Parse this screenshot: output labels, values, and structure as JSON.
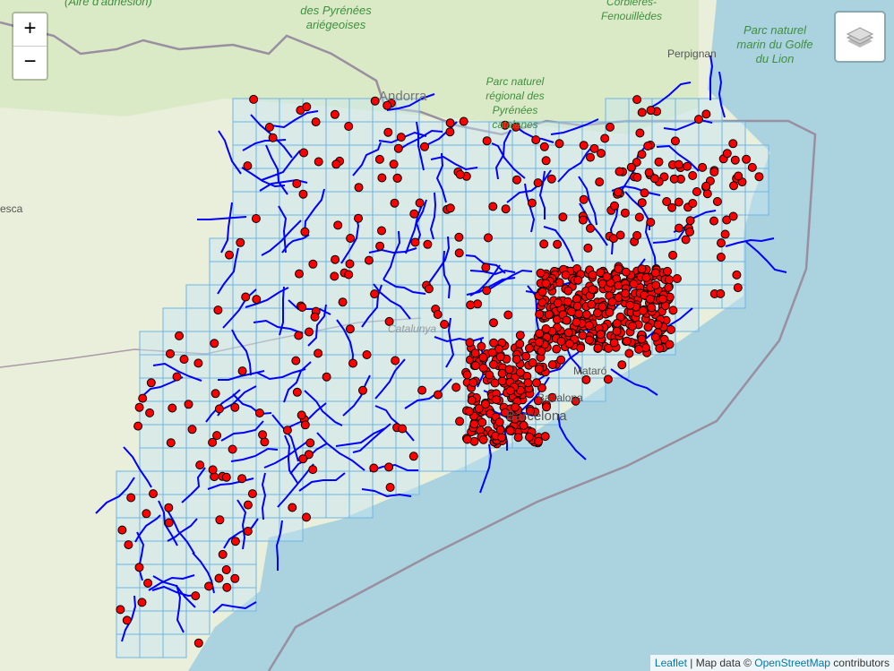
{
  "map": {
    "labels": {
      "aire": "(Aire d'adhésion)",
      "pyrenees_ariegeoises": "des Pyrénées ariégeoises",
      "corbieres": "Corbières-Fenouillèdes",
      "parc_marin": "Parc naturel marin du Golfe du Lion",
      "parc_pyrenees_catalanes": "Parc naturel régional des Pyrénées catalanes",
      "andorra": "Andorra",
      "perpignan": "Perpignan",
      "huesca": "esca",
      "catalunya": "Catalunya",
      "mataro": "Mataró",
      "badalona": "Badalona",
      "barcelona": "Barcelona"
    },
    "colors": {
      "land": "#eef0e4",
      "sea": "#aad3df",
      "grid": "#6fb4e3",
      "river": "#0000ff",
      "marker": "#ff0000",
      "marker_stroke": "#000000"
    }
  },
  "controls": {
    "zoom_in": "+",
    "zoom_out": "−",
    "layers_icon": "layers-icon"
  },
  "attribution": {
    "leaflet": "Leaflet",
    "separator": " | Map data © ",
    "osm": "OpenStreetMap",
    "contributors": " contributors"
  }
}
